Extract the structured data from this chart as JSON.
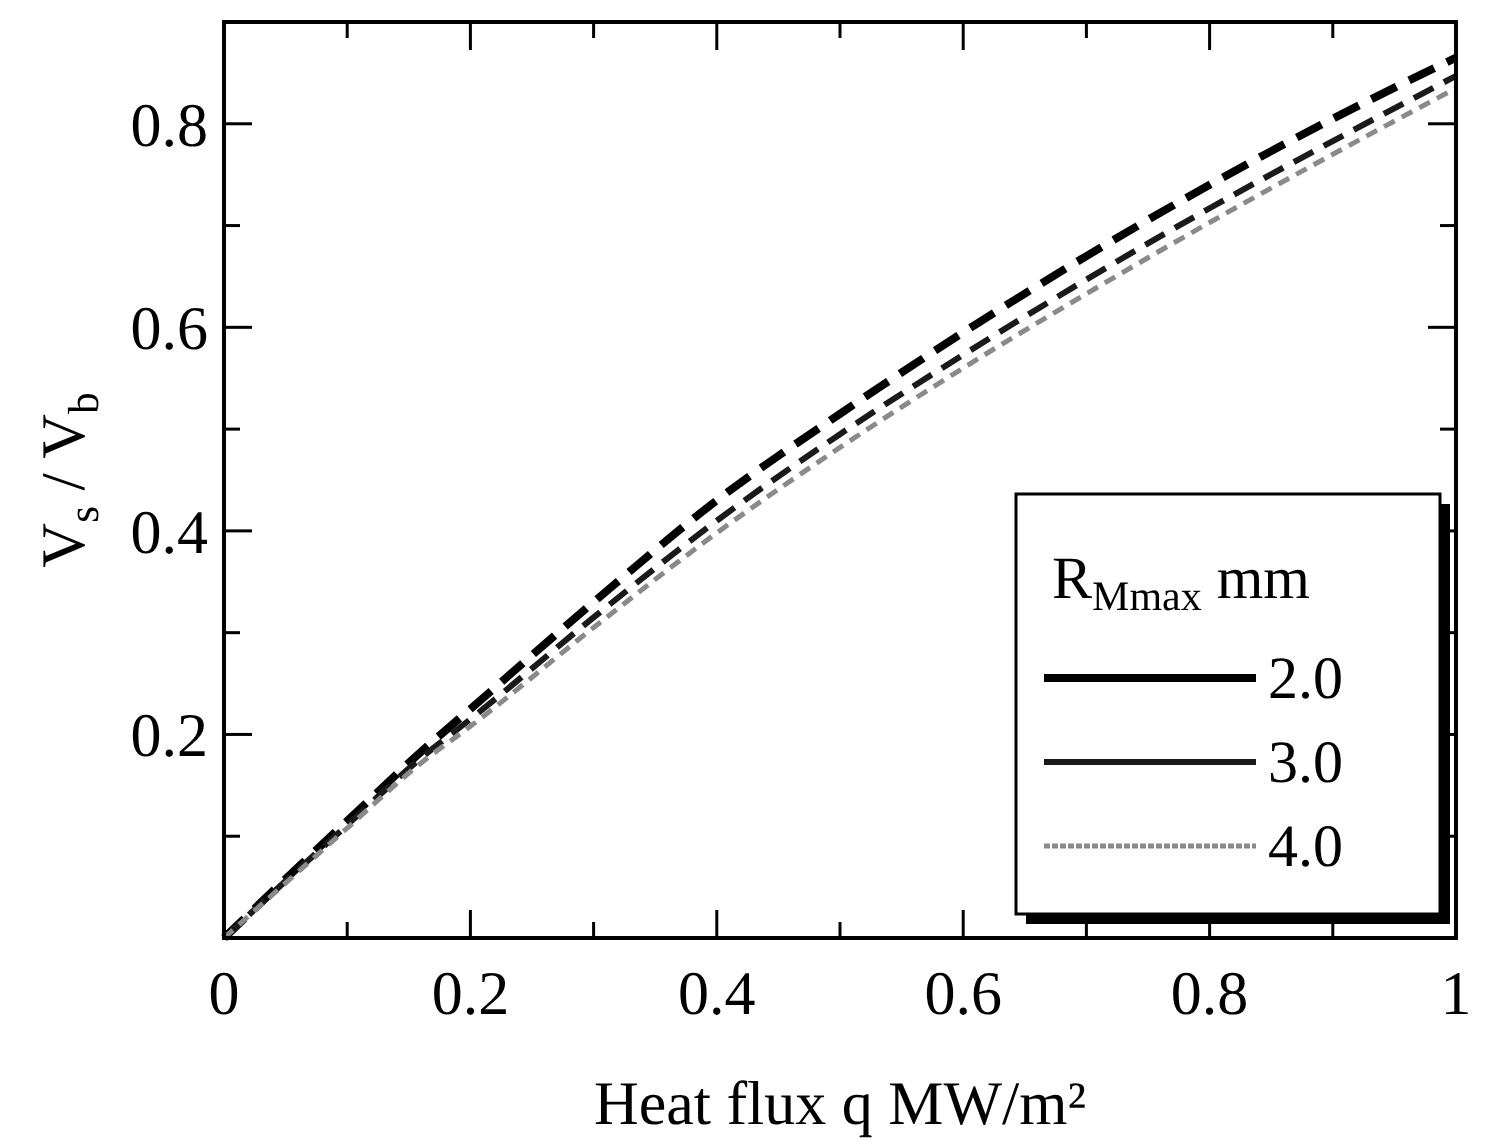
{
  "chart_data": {
    "type": "line",
    "xlabel": "Heat flux q MW/m²",
    "ylabel": "V$_{s}$ / V$_{b}$",
    "legend_title": "R$_{Mmax}$ mm",
    "legend": "bottom right",
    "x": [
      0,
      0.05,
      0.1,
      0.16,
      0.2,
      0.3,
      0.4,
      0.5,
      0.6,
      0.7,
      0.8,
      0.9,
      1
    ],
    "xlim": [
      0,
      1
    ],
    "xticks": [
      0,
      {
        "value": 0.1,
        "label": null
      },
      0.2,
      {
        "value": 0.3,
        "label": null
      },
      0.4,
      {
        "value": 0.5,
        "label": null
      },
      0.6,
      {
        "value": 0.7,
        "label": null
      },
      0.8,
      {
        "value": 0.9,
        "label": null
      },
      1
    ],
    "ylim": [
      0,
      0.9
    ],
    "yticks": [
      {
        "value": 0.1,
        "label": null
      },
      0.2,
      {
        "value": 0.3,
        "label": null
      },
      0.4,
      {
        "value": 0.5,
        "label": null
      },
      0.6,
      {
        "value": 0.7,
        "label": null
      },
      0.8
    ],
    "line_style": "dashed",
    "grid": false,
    "marker": "none",
    "series": [
      {
        "name": "2.0",
        "color": "#000000",
        "values": [
          0,
          0.058,
          0.115,
          0.183,
          0.225,
          0.33,
          0.43,
          0.515,
          0.595,
          0.67,
          0.74,
          0.805,
          0.865
        ]
      },
      {
        "name": "3.0",
        "color": "#1a1a1a",
        "values": [
          0,
          0.056,
          0.111,
          0.177,
          0.215,
          0.315,
          0.41,
          0.495,
          0.573,
          0.647,
          0.717,
          0.783,
          0.847
        ]
      },
      {
        "name": "4.0",
        "color": "#8a8a8a",
        "line_style": "dotted",
        "values": [
          0,
          0.054,
          0.108,
          0.172,
          0.208,
          0.305,
          0.398,
          0.482,
          0.56,
          0.633,
          0.703,
          0.77,
          0.835
        ]
      }
    ]
  }
}
